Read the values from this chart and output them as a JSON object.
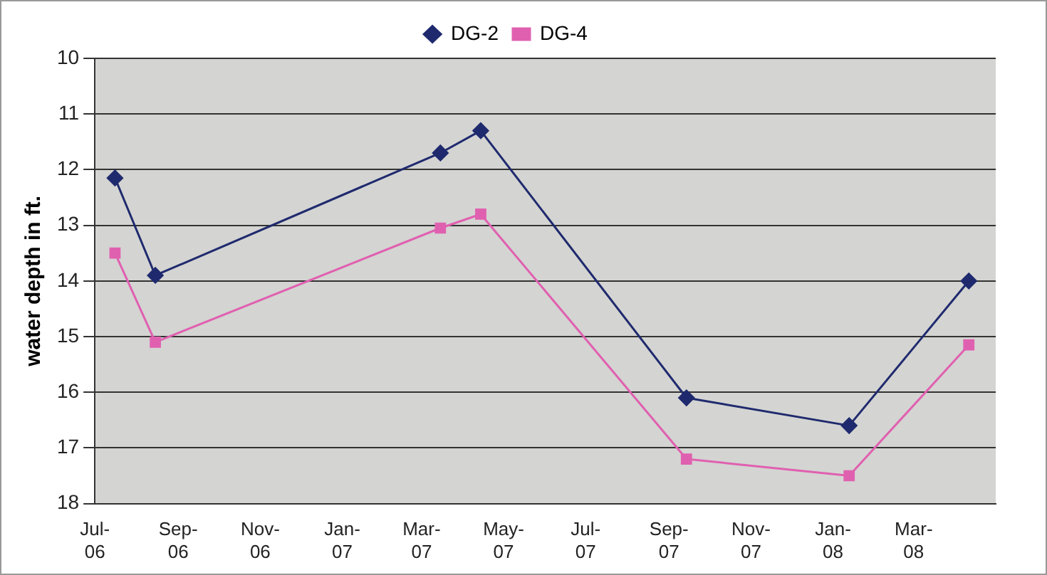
{
  "chart_data": {
    "type": "line",
    "ylabel": "water depth in ft.",
    "x": [
      "2006-07-16",
      "2006-08-15",
      "2007-03-15",
      "2007-04-14",
      "2007-09-14",
      "2008-01-13",
      "2008-04-11"
    ],
    "series": [
      {
        "name": "DG-2",
        "color": "#1f2a6e",
        "marker": "diamond",
        "values": [
          12.15,
          13.9,
          11.7,
          11.3,
          16.1,
          16.6,
          14.0
        ]
      },
      {
        "name": "DG-4",
        "color": "#e060b0",
        "marker": "square",
        "values": [
          13.5,
          15.1,
          13.05,
          12.8,
          17.2,
          17.5,
          15.15
        ]
      }
    ],
    "xlim": [
      "2006-07-01",
      "2008-05-01"
    ],
    "xticks": [
      {
        "value": "2006-07-01",
        "label": "Jul-06"
      },
      {
        "value": "2006-09-01",
        "label": "Sep-06"
      },
      {
        "value": "2006-11-01",
        "label": "Nov-06"
      },
      {
        "value": "2007-01-01",
        "label": "Jan-07"
      },
      {
        "value": "2007-03-01",
        "label": "Mar-07"
      },
      {
        "value": "2007-05-01",
        "label": "May-07"
      },
      {
        "value": "2007-07-01",
        "label": "Jul-07"
      },
      {
        "value": "2007-09-01",
        "label": "Sep-07"
      },
      {
        "value": "2007-11-01",
        "label": "Nov-07"
      },
      {
        "value": "2008-01-01",
        "label": "Jan-08"
      },
      {
        "value": "2008-03-01",
        "label": "Mar-08"
      },
      {
        "value": "2008-05-01",
        "label": null
      }
    ],
    "ylim": [
      18,
      10
    ],
    "yticks": [
      10,
      11,
      12,
      13,
      14,
      15,
      16,
      17,
      18
    ],
    "grid": "y",
    "legend": "top",
    "line_style": "solid"
  }
}
